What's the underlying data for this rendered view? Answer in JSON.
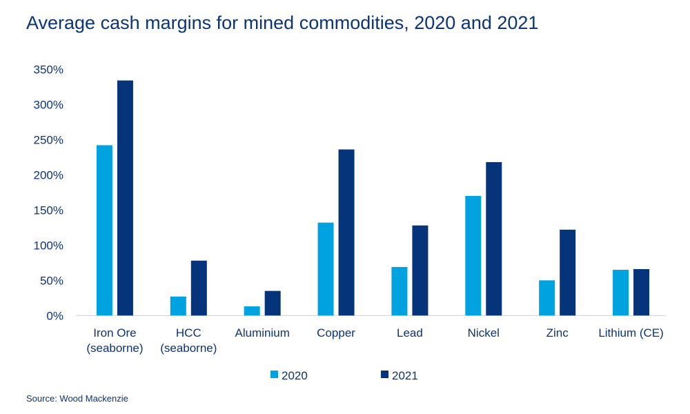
{
  "chart_data": {
    "type": "bar",
    "title": "Average cash margins for mined commodities, 2020 and 2021",
    "categories": [
      [
        "Iron Ore",
        "(seaborne)"
      ],
      [
        "HCC",
        "(seaborne)"
      ],
      [
        "Aluminium"
      ],
      [
        "Copper"
      ],
      [
        "Lead"
      ],
      [
        "Nickel"
      ],
      [
        "Zinc"
      ],
      [
        "Lithium (CE)"
      ]
    ],
    "series": [
      {
        "name": "2020",
        "color": "#00a3e0",
        "values": [
          242,
          27,
          13,
          132,
          69,
          170,
          50,
          65
        ]
      },
      {
        "name": "2021",
        "color": "#06347a",
        "values": [
          334,
          78,
          35,
          236,
          128,
          218,
          122,
          66
        ]
      }
    ],
    "yticks": [
      "0%",
      "50%",
      "100%",
      "150%",
      "200%",
      "250%",
      "300%",
      "350%"
    ],
    "ylim": [
      0,
      350
    ],
    "unit": "%",
    "grid": false,
    "legend": "bottom",
    "source": "Source: Wood Mackenzie"
  }
}
